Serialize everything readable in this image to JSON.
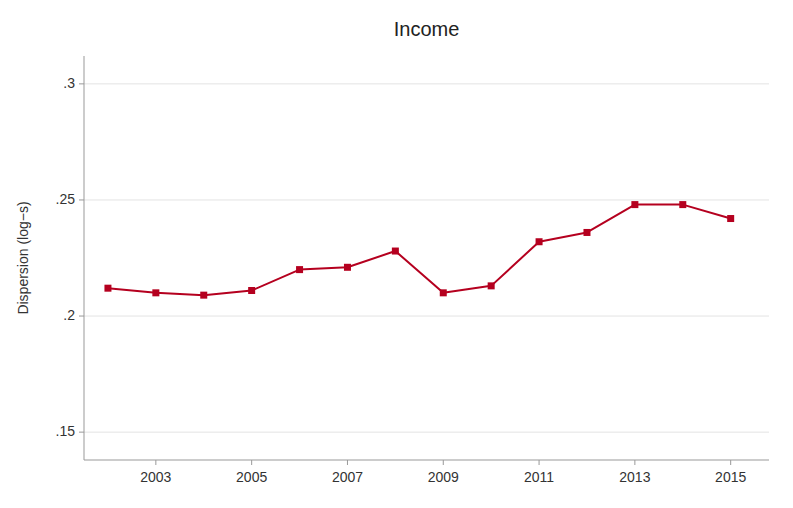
{
  "chart_data": {
    "type": "line",
    "title": "Income",
    "ylabel": "Dispersion (log−s)",
    "x": [
      2002,
      2003,
      2004,
      2005,
      2006,
      2007,
      2008,
      2009,
      2010,
      2011,
      2012,
      2013,
      2014,
      2015
    ],
    "values": [
      0.212,
      0.21,
      0.209,
      0.211,
      0.22,
      0.221,
      0.228,
      0.21,
      0.213,
      0.232,
      0.236,
      0.248,
      0.248,
      0.242
    ],
    "color": "#b5001f",
    "marker": "square",
    "xlim": [
      2001.5,
      2015.8
    ],
    "ylim": [
      0.138,
      0.312
    ],
    "xticks": [
      2003,
      2005,
      2007,
      2009,
      2011,
      2013,
      2015
    ],
    "yticks": [
      {
        "value": 0.15,
        "label": ".15"
      },
      {
        "value": 0.2,
        "label": ".2"
      },
      {
        "value": 0.25,
        "label": ".25"
      },
      {
        "value": 0.3,
        "label": ".3"
      }
    ],
    "grid": true
  }
}
